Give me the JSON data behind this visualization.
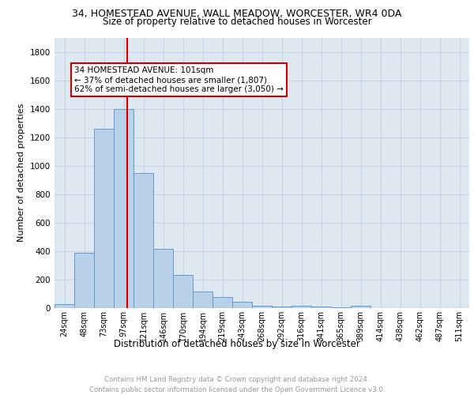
{
  "title1": "34, HOMESTEAD AVENUE, WALL MEADOW, WORCESTER, WR4 0DA",
  "title2": "Size of property relative to detached houses in Worcester",
  "xlabel": "Distribution of detached houses by size in Worcester",
  "ylabel": "Number of detached properties",
  "bar_labels": [
    "24sqm",
    "48sqm",
    "73sqm",
    "97sqm",
    "121sqm",
    "146sqm",
    "170sqm",
    "194sqm",
    "219sqm",
    "243sqm",
    "268sqm",
    "292sqm",
    "316sqm",
    "341sqm",
    "365sqm",
    "389sqm",
    "414sqm",
    "438sqm",
    "462sqm",
    "487sqm",
    "511sqm"
  ],
  "bar_values": [
    30,
    390,
    1260,
    1400,
    950,
    415,
    235,
    118,
    75,
    45,
    18,
    10,
    18,
    10,
    5,
    18,
    0,
    0,
    0,
    0,
    0
  ],
  "bar_color": "#b8d0e8",
  "bar_edge_color": "#6699cc",
  "vline_x_index": 3.17,
  "annotation_text": "34 HOMESTEAD AVENUE: 101sqm\n← 37% of detached houses are smaller (1,807)\n62% of semi-detached houses are larger (3,050) →",
  "annotation_box_color": "#ffffff",
  "annotation_box_edge_color": "#cc0000",
  "vline_color": "#cc0000",
  "ylim": [
    0,
    1900
  ],
  "yticks": [
    0,
    200,
    400,
    600,
    800,
    1000,
    1200,
    1400,
    1600,
    1800
  ],
  "grid_color": "#c8d4e8",
  "bg_color": "#dde8f0",
  "footer_text": "Contains HM Land Registry data © Crown copyright and database right 2024.\nContains public sector information licensed under the Open Government Licence v3.0."
}
